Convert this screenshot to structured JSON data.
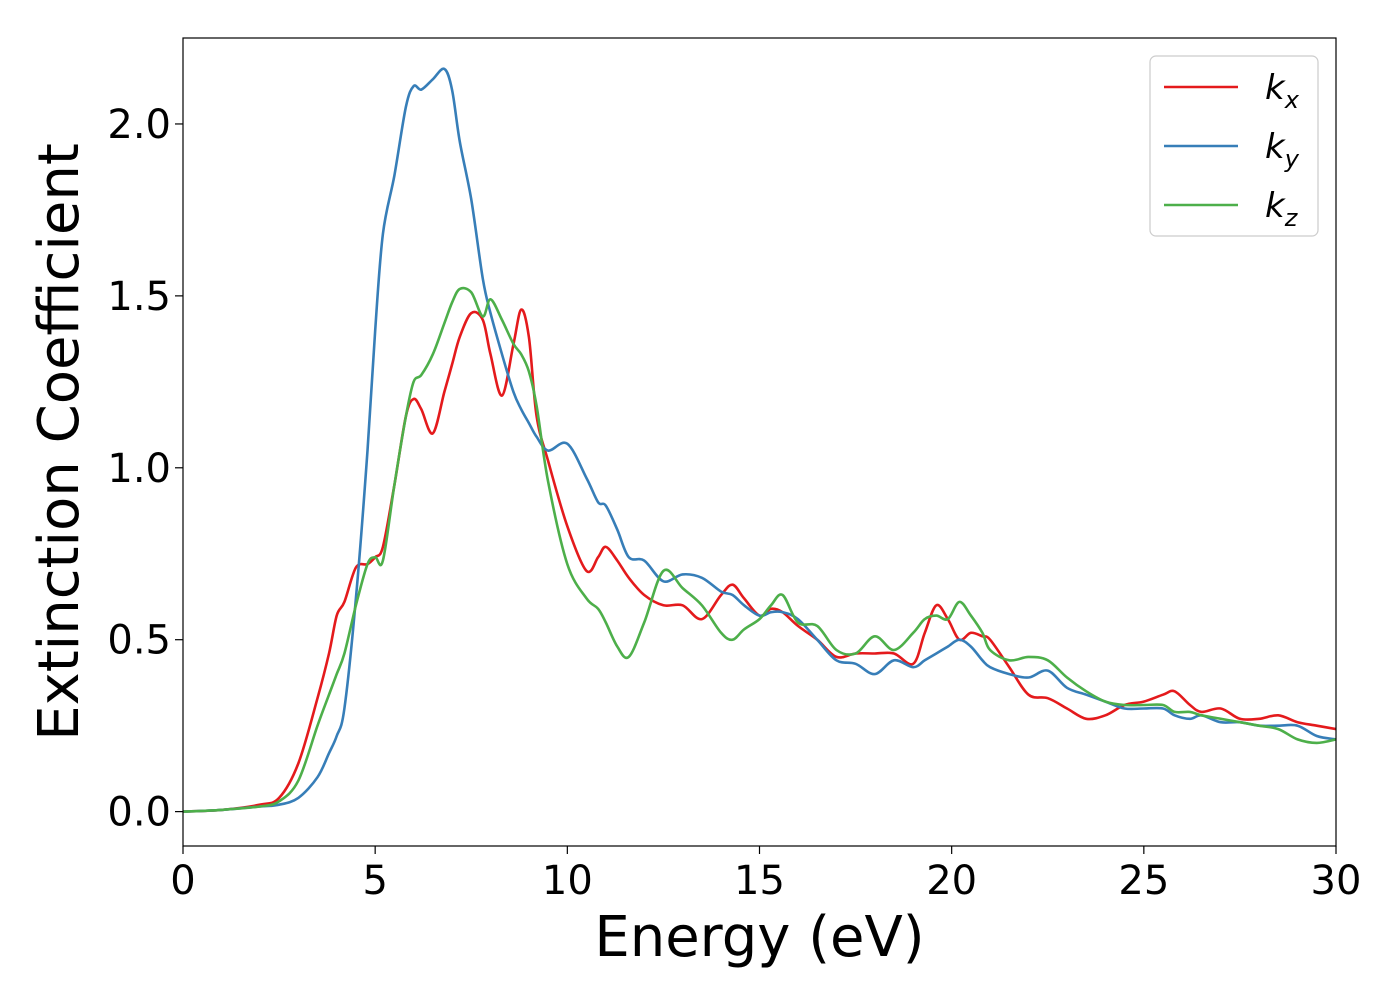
{
  "chart_data": {
    "type": "line",
    "xlabel": "Energy (eV)",
    "ylabel": "Extinction Coefficient",
    "xlim": [
      0,
      30
    ],
    "ylim": [
      -0.1,
      2.25
    ],
    "xticks": [
      0,
      5,
      10,
      15,
      20,
      25,
      30
    ],
    "xtick_labels": [
      "0",
      "5",
      "10",
      "15",
      "20",
      "25",
      "30"
    ],
    "yticks": [
      0.0,
      0.5,
      1.0,
      1.5,
      2.0
    ],
    "ytick_labels": [
      "0.0",
      "0.5",
      "1.0",
      "1.5",
      "2.0"
    ],
    "grid": false,
    "legend_position": "top-right",
    "series": [
      {
        "name": "k_x",
        "label_main": "k",
        "label_sub": "x",
        "color": "#e41a1c",
        "x": [
          0,
          1,
          2,
          2.5,
          3,
          3.5,
          3.8,
          4,
          4.2,
          4.5,
          4.8,
          5,
          5.2,
          5.5,
          5.8,
          6,
          6.2,
          6.5,
          6.8,
          7,
          7.2,
          7.5,
          7.8,
          8,
          8.3,
          8.6,
          8.8,
          9,
          9.2,
          9.5,
          10,
          10.5,
          10.8,
          11,
          11.3,
          11.6,
          12,
          12.5,
          13,
          13.5,
          14,
          14.3,
          14.6,
          15,
          15.3,
          15.6,
          16,
          16.5,
          17,
          17.5,
          18,
          18.5,
          19,
          19.3,
          19.6,
          19.9,
          20.2,
          20.5,
          20.8,
          21,
          21.5,
          22,
          22.5,
          23,
          23.5,
          24,
          24.5,
          25,
          25.5,
          25.8,
          26.2,
          26.5,
          27,
          27.5,
          28,
          28.5,
          29,
          29.5,
          30
        ],
        "y": [
          0,
          0.005,
          0.02,
          0.04,
          0.14,
          0.33,
          0.46,
          0.57,
          0.61,
          0.71,
          0.72,
          0.74,
          0.77,
          0.95,
          1.15,
          1.2,
          1.17,
          1.1,
          1.22,
          1.3,
          1.38,
          1.45,
          1.43,
          1.33,
          1.21,
          1.36,
          1.46,
          1.38,
          1.15,
          1.02,
          0.83,
          0.7,
          0.74,
          0.77,
          0.73,
          0.68,
          0.63,
          0.6,
          0.6,
          0.56,
          0.63,
          0.66,
          0.62,
          0.57,
          0.59,
          0.58,
          0.54,
          0.5,
          0.45,
          0.46,
          0.46,
          0.46,
          0.43,
          0.52,
          0.6,
          0.56,
          0.5,
          0.52,
          0.51,
          0.5,
          0.42,
          0.34,
          0.33,
          0.3,
          0.27,
          0.28,
          0.31,
          0.32,
          0.34,
          0.35,
          0.31,
          0.29,
          0.3,
          0.27,
          0.27,
          0.28,
          0.26,
          0.25,
          0.24
        ]
      },
      {
        "name": "k_y",
        "label_main": "k",
        "label_sub": "y",
        "color": "#377eb8",
        "x": [
          0,
          1,
          2,
          2.5,
          3,
          3.5,
          3.8,
          4,
          4.2,
          4.5,
          4.8,
          5,
          5.2,
          5.5,
          5.8,
          6,
          6.2,
          6.5,
          6.8,
          7,
          7.2,
          7.5,
          7.8,
          8,
          8.3,
          8.6,
          8.8,
          9,
          9.2,
          9.5,
          10,
          10.5,
          10.8,
          11,
          11.3,
          11.6,
          12,
          12.5,
          13,
          13.5,
          14,
          14.3,
          14.6,
          15,
          15.3,
          15.6,
          16,
          16.5,
          17,
          17.5,
          18,
          18.5,
          19,
          19.3,
          19.6,
          19.9,
          20.2,
          20.5,
          20.8,
          21,
          21.5,
          22,
          22.5,
          23,
          23.5,
          24,
          24.5,
          25,
          25.5,
          25.8,
          26.2,
          26.5,
          27,
          27.5,
          28,
          28.5,
          29,
          29.5,
          30
        ],
        "y": [
          0,
          0.005,
          0.015,
          0.02,
          0.04,
          0.1,
          0.17,
          0.22,
          0.3,
          0.62,
          1.05,
          1.4,
          1.68,
          1.85,
          2.05,
          2.11,
          2.1,
          2.13,
          2.16,
          2.1,
          1.95,
          1.78,
          1.55,
          1.45,
          1.33,
          1.22,
          1.17,
          1.13,
          1.09,
          1.05,
          1.07,
          0.97,
          0.9,
          0.89,
          0.82,
          0.74,
          0.73,
          0.67,
          0.69,
          0.68,
          0.64,
          0.63,
          0.6,
          0.57,
          0.58,
          0.58,
          0.56,
          0.5,
          0.44,
          0.43,
          0.4,
          0.44,
          0.42,
          0.44,
          0.46,
          0.48,
          0.5,
          0.48,
          0.44,
          0.42,
          0.4,
          0.39,
          0.41,
          0.36,
          0.34,
          0.32,
          0.3,
          0.3,
          0.3,
          0.28,
          0.27,
          0.28,
          0.26,
          0.26,
          0.25,
          0.25,
          0.25,
          0.22,
          0.21
        ]
      },
      {
        "name": "k_z",
        "label_main": "k",
        "label_sub": "z",
        "color": "#4daf4a",
        "x": [
          0,
          1,
          2,
          2.5,
          3,
          3.5,
          3.8,
          4,
          4.2,
          4.5,
          4.8,
          5,
          5.2,
          5.5,
          5.8,
          6,
          6.2,
          6.5,
          6.8,
          7,
          7.2,
          7.5,
          7.8,
          8,
          8.3,
          8.6,
          8.8,
          9,
          9.2,
          9.5,
          10,
          10.5,
          10.8,
          11,
          11.3,
          11.6,
          12,
          12.5,
          13,
          13.5,
          14,
          14.3,
          14.6,
          15,
          15.3,
          15.6,
          16,
          16.5,
          17,
          17.5,
          18,
          18.5,
          19,
          19.3,
          19.6,
          19.9,
          20.2,
          20.5,
          20.8,
          21,
          21.5,
          22,
          22.5,
          23,
          23.5,
          24,
          24.5,
          25,
          25.5,
          25.8,
          26.2,
          26.5,
          27,
          27.5,
          28,
          28.5,
          29,
          29.5,
          30
        ],
        "y": [
          0,
          0.005,
          0.015,
          0.03,
          0.09,
          0.25,
          0.34,
          0.4,
          0.46,
          0.6,
          0.72,
          0.74,
          0.73,
          0.95,
          1.15,
          1.25,
          1.27,
          1.33,
          1.42,
          1.48,
          1.52,
          1.51,
          1.44,
          1.49,
          1.43,
          1.36,
          1.33,
          1.28,
          1.18,
          0.96,
          0.72,
          0.62,
          0.59,
          0.55,
          0.48,
          0.45,
          0.55,
          0.7,
          0.65,
          0.6,
          0.52,
          0.5,
          0.53,
          0.56,
          0.6,
          0.63,
          0.55,
          0.54,
          0.47,
          0.46,
          0.51,
          0.47,
          0.52,
          0.56,
          0.57,
          0.56,
          0.61,
          0.57,
          0.52,
          0.47,
          0.44,
          0.45,
          0.44,
          0.39,
          0.35,
          0.32,
          0.31,
          0.31,
          0.31,
          0.29,
          0.29,
          0.28,
          0.27,
          0.26,
          0.25,
          0.24,
          0.21,
          0.2,
          0.21
        ]
      }
    ]
  }
}
